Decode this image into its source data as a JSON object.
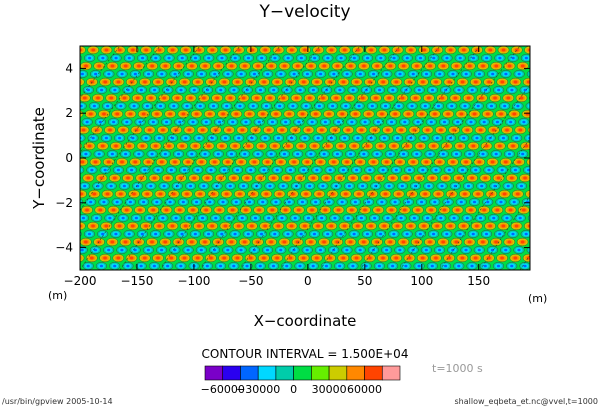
{
  "chart_data": {
    "type": "heatmap",
    "title": "Y−velocity",
    "xlabel": "X−coordinate",
    "ylabel": "Y−coordinate",
    "x_unit": "(m)",
    "y_unit": "(m)",
    "xlim": [
      -200,
      195
    ],
    "ylim": [
      -5,
      5
    ],
    "x_ticks": [
      "−200",
      "−150",
      "−100",
      "−50",
      "0",
      "50",
      "100",
      "150"
    ],
    "x_tick_values": [
      -200,
      -150,
      -100,
      -50,
      0,
      50,
      100,
      150
    ],
    "y_ticks": [
      "4",
      "2",
      "0",
      "−2",
      "−4"
    ],
    "y_tick_values": [
      4,
      2,
      0,
      -2,
      -4
    ],
    "contour_interval_label": "CONTOUR INTERVAL = 1.500E+04",
    "time_label": "t=1000 s",
    "colorbar": {
      "colors": [
        "#7a00c8",
        "#2a00f0",
        "#0066ff",
        "#00d8ff",
        "#00ccaa",
        "#00dd44",
        "#66ee00",
        "#cccc00",
        "#ff8800",
        "#ff4400",
        "#ff9a9a"
      ],
      "tick_labels": [
        "−60000",
        "−30000",
        "0",
        "30000",
        "60000"
      ],
      "tick_values": [
        -60000,
        -30000,
        0,
        30000,
        60000
      ]
    },
    "background_color": "#00dd44",
    "grid": false,
    "legend": "colorbar bottom-center"
  },
  "footer": {
    "left": "/usr/bin/gpview   2005-10-14",
    "right": "shallow_eqbeta_et.nc@vvel,t=1000"
  }
}
